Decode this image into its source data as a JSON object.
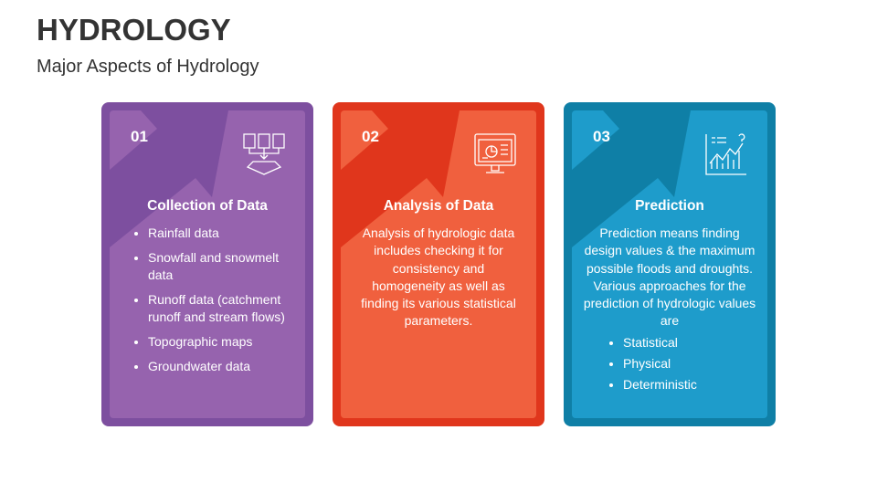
{
  "header": {
    "title": "HYDROLOGY",
    "subtitle": "Major Aspects of Hydrology"
  },
  "cards": [
    {
      "number": "01",
      "title": "Collection of Data",
      "items": [
        "Rainfall data",
        "Snowfall and snowmelt data",
        "Runoff data (catchment runoff and stream flows)",
        "Topographic maps",
        "Groundwater data"
      ]
    },
    {
      "number": "02",
      "title": "Analysis of Data",
      "text": "Analysis of hydrologic data includes checking it for consistency and homogeneity as well as finding its various statistical parameters."
    },
    {
      "number": "03",
      "title": "Prediction",
      "text": "Prediction means finding design values & the maximum possible floods and droughts. Various approaches for the prediction of hydrologic values are",
      "items": [
        "Statistical",
        "Physical",
        "Deterministic"
      ]
    }
  ]
}
